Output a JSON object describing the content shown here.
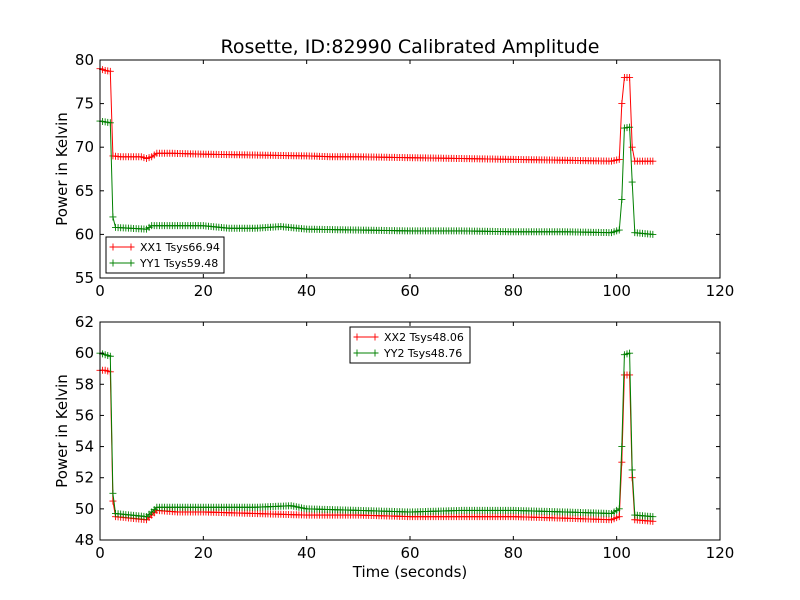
{
  "chart_data": [
    {
      "type": "line",
      "title": "Rosette, ID:82990 Calibrated Amplitude",
      "xlabel": "",
      "ylabel": "Power in Kelvin",
      "xlim": [
        0,
        120
      ],
      "ylim": [
        55,
        80
      ],
      "xticks": [
        "0",
        "20",
        "40",
        "60",
        "80",
        "100",
        "120"
      ],
      "yticks": [
        "55",
        "60",
        "65",
        "70",
        "75",
        "80"
      ],
      "legend_position": "lower-left",
      "marker": "plus",
      "series": [
        {
          "name": "XX1 Tsys66.94",
          "color": "#ff0000",
          "points": [
            [
              0,
              79
            ],
            [
              1,
              78.8
            ],
            [
              2,
              78.7
            ],
            [
              2.5,
              69
            ],
            [
              4,
              68.9
            ],
            [
              6,
              68.9
            ],
            [
              8,
              68.9
            ],
            [
              9,
              68.7
            ],
            [
              10,
              68.9
            ],
            [
              11,
              69.3
            ],
            [
              14,
              69.3
            ],
            [
              20,
              69.2
            ],
            [
              30,
              69.1
            ],
            [
              40,
              69
            ],
            [
              45,
              68.9
            ],
            [
              50,
              68.9
            ],
            [
              60,
              68.8
            ],
            [
              70,
              68.7
            ],
            [
              80,
              68.6
            ],
            [
              90,
              68.5
            ],
            [
              99,
              68.4
            ],
            [
              100.5,
              68.6
            ],
            [
              101,
              75
            ],
            [
              101.5,
              78
            ],
            [
              102.5,
              78
            ],
            [
              103,
              70
            ],
            [
              103.5,
              68.4
            ],
            [
              107,
              68.4
            ]
          ]
        },
        {
          "name": "YY1 Tsys59.48",
          "color": "#008000",
          "points": [
            [
              0,
              73
            ],
            [
              1,
              72.9
            ],
            [
              2,
              72.8
            ],
            [
              2.5,
              62
            ],
            [
              3,
              60.8
            ],
            [
              6,
              60.7
            ],
            [
              9,
              60.6
            ],
            [
              10,
              61
            ],
            [
              12,
              61
            ],
            [
              20,
              61
            ],
            [
              25,
              60.7
            ],
            [
              30,
              60.7
            ],
            [
              35,
              60.9
            ],
            [
              40,
              60.6
            ],
            [
              50,
              60.5
            ],
            [
              60,
              60.4
            ],
            [
              70,
              60.4
            ],
            [
              80,
              60.3
            ],
            [
              90,
              60.3
            ],
            [
              99,
              60.2
            ],
            [
              100.5,
              60.5
            ],
            [
              101,
              64
            ],
            [
              101.5,
              72.2
            ],
            [
              102.5,
              72.3
            ],
            [
              103,
              66
            ],
            [
              103.5,
              60.2
            ],
            [
              107,
              60
            ]
          ]
        }
      ]
    },
    {
      "type": "line",
      "title": "",
      "xlabel": "Time (seconds)",
      "ylabel": "Power in Kelvin",
      "xlim": [
        0,
        120
      ],
      "ylim": [
        48,
        62
      ],
      "xticks": [
        "0",
        "20",
        "40",
        "60",
        "80",
        "100",
        "120"
      ],
      "yticks": [
        "48",
        "50",
        "52",
        "54",
        "56",
        "58",
        "60",
        "62"
      ],
      "legend_position": "upper-center",
      "marker": "plus",
      "series": [
        {
          "name": "XX2 Tsys48.06",
          "color": "#ff0000",
          "points": [
            [
              0,
              58.9
            ],
            [
              1,
              58.9
            ],
            [
              2,
              58.8
            ],
            [
              2.5,
              50.5
            ],
            [
              3,
              49.5
            ],
            [
              6,
              49.4
            ],
            [
              9,
              49.3
            ],
            [
              10,
              49.6
            ],
            [
              11,
              49.9
            ],
            [
              15,
              49.8
            ],
            [
              20,
              49.8
            ],
            [
              30,
              49.7
            ],
            [
              40,
              49.6
            ],
            [
              50,
              49.6
            ],
            [
              60,
              49.5
            ],
            [
              70,
              49.5
            ],
            [
              80,
              49.5
            ],
            [
              90,
              49.4
            ],
            [
              99,
              49.3
            ],
            [
              100.5,
              49.5
            ],
            [
              101,
              53
            ],
            [
              101.5,
              58.6
            ],
            [
              102.5,
              58.6
            ],
            [
              103,
              52
            ],
            [
              103.5,
              49.3
            ],
            [
              107,
              49.2
            ]
          ]
        },
        {
          "name": "YY2 Tsys48.76",
          "color": "#008000",
          "points": [
            [
              0,
              60
            ],
            [
              1,
              59.9
            ],
            [
              2,
              59.8
            ],
            [
              2.5,
              51
            ],
            [
              3,
              49.7
            ],
            [
              6,
              49.6
            ],
            [
              9,
              49.5
            ],
            [
              10,
              49.8
            ],
            [
              11,
              50.1
            ],
            [
              15,
              50.1
            ],
            [
              20,
              50.1
            ],
            [
              30,
              50.1
            ],
            [
              37,
              50.2
            ],
            [
              40,
              50
            ],
            [
              50,
              49.9
            ],
            [
              60,
              49.8
            ],
            [
              70,
              49.9
            ],
            [
              80,
              49.9
            ],
            [
              90,
              49.8
            ],
            [
              99,
              49.7
            ],
            [
              100.5,
              50
            ],
            [
              101,
              54
            ],
            [
              101.5,
              59.9
            ],
            [
              102.5,
              60
            ],
            [
              103,
              52.5
            ],
            [
              103.5,
              49.6
            ],
            [
              107,
              49.5
            ]
          ]
        }
      ]
    }
  ]
}
